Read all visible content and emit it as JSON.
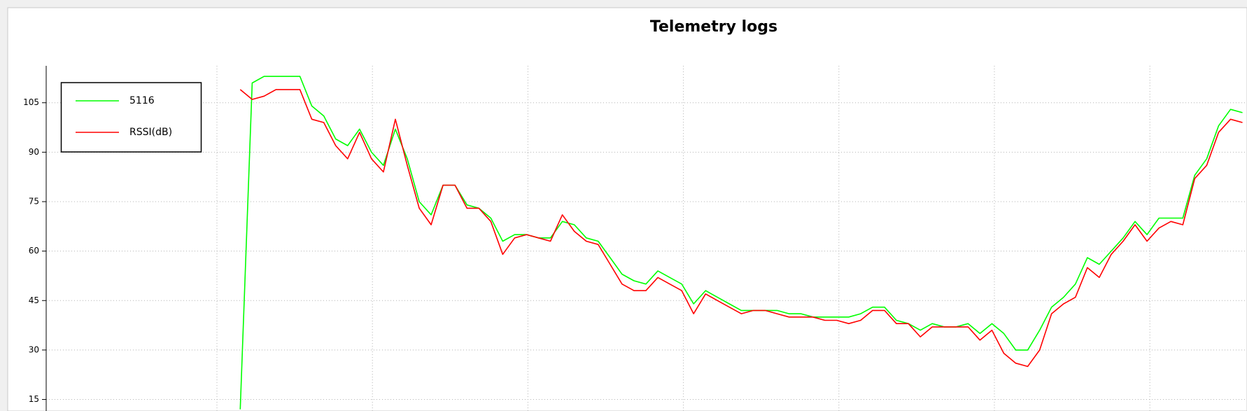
{
  "chart_data": {
    "type": "line",
    "title": "Telemetry logs",
    "categories": [
      null,
      null,
      null,
      null,
      null,
      null,
      null,
      null,
      null,
      null,
      null,
      null,
      null,
      null,
      null,
      null,
      null,
      null,
      null,
      null,
      null,
      null,
      null,
      null,
      null,
      null,
      null,
      null,
      null,
      null,
      null,
      null,
      null,
      null,
      null,
      null,
      null,
      null,
      null,
      null,
      null,
      null,
      null,
      null,
      null,
      null,
      null,
      null,
      null,
      null,
      null,
      null,
      null,
      null,
      null,
      null,
      null,
      null,
      null,
      null,
      null,
      null,
      null,
      null,
      null,
      null,
      null,
      null,
      null,
      null,
      null,
      null,
      null,
      null,
      null,
      null,
      null,
      null,
      null,
      null,
      null,
      null,
      null,
      null,
      null,
      null,
      null,
      null,
      null,
      null,
      null,
      null,
      null,
      null,
      null,
      null,
      null,
      null,
      null,
      null,
      null
    ],
    "series": [
      {
        "name": "5116",
        "color": "#00ff00",
        "values": [
          null,
          null,
          null,
          null,
          null,
          null,
          null,
          null,
          null,
          null,
          null,
          null,
          null,
          null,
          null,
          null,
          12,
          111,
          113,
          113,
          113,
          113,
          104,
          101,
          94,
          92,
          97,
          90,
          86,
          97,
          88,
          75,
          71,
          80,
          80,
          74,
          73,
          70,
          63,
          65,
          65,
          64,
          64,
          69,
          68,
          64,
          63,
          58,
          53,
          51,
          50,
          54,
          52,
          50,
          44,
          48,
          46,
          44,
          42,
          42,
          42,
          42,
          41,
          41,
          40,
          40,
          40,
          40,
          41,
          43,
          43,
          39,
          38,
          36,
          38,
          37,
          37,
          38,
          35,
          38,
          35,
          30,
          30,
          36,
          43,
          46,
          50,
          58,
          56,
          60,
          64,
          69,
          65,
          70,
          70,
          70,
          83,
          88,
          98,
          103,
          102
        ]
      },
      {
        "name": "RSSI(dB)",
        "color": "#ff0000",
        "values": [
          null,
          null,
          null,
          null,
          null,
          null,
          null,
          null,
          null,
          null,
          null,
          null,
          null,
          null,
          null,
          null,
          109,
          106,
          107,
          109,
          109,
          109,
          100,
          99,
          92,
          88,
          96,
          88,
          84,
          100,
          86,
          73,
          68,
          80,
          80,
          73,
          73,
          69,
          59,
          64,
          65,
          64,
          63,
          71,
          66,
          63,
          62,
          56,
          50,
          48,
          48,
          52,
          50,
          48,
          41,
          47,
          45,
          43,
          41,
          42,
          42,
          41,
          40,
          40,
          40,
          39,
          39,
          38,
          39,
          42,
          42,
          38,
          38,
          34,
          37,
          37,
          37,
          37,
          33,
          36,
          29,
          26,
          25,
          30,
          41,
          44,
          46,
          55,
          52,
          59,
          63,
          68,
          63,
          67,
          69,
          68,
          82,
          86,
          96,
          100,
          99
        ]
      }
    ],
    "ylim": [
      11.5,
      116.2
    ],
    "yticks": [
      15,
      30,
      45,
      60,
      75,
      90,
      105
    ],
    "grid": true,
    "legend": "upper left"
  }
}
